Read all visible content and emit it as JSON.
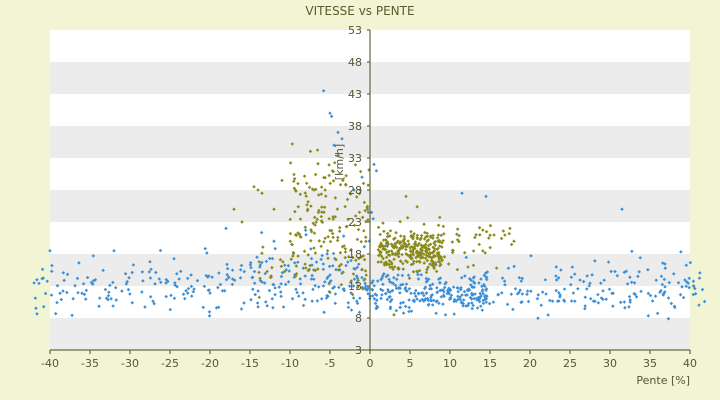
{
  "chart_data": {
    "type": "scatter",
    "title": "VITESSE vs PENTE",
    "xlabel": "Pente [%]",
    "ylabel": "[km/h]",
    "xlim": [
      -40,
      40
    ],
    "ylim": [
      3,
      53
    ],
    "x_ticks": [
      "-40",
      "-35",
      "-30",
      "-25",
      "-20",
      "-15",
      "-10",
      "-5",
      "0",
      "5",
      "10",
      "15",
      "20",
      "25",
      "30",
      "35",
      "40"
    ],
    "y_ticks": [
      "3",
      "8",
      "13",
      "18",
      "23",
      "28",
      "33",
      "38",
      "43",
      "48",
      "53"
    ],
    "grid": "horizontal alternating bands",
    "series": [
      {
        "color": "#3a8fd6",
        "marker": "diamond",
        "clusters": [
          {
            "x_range": [
              -42,
              42
            ],
            "y_center": 12.5,
            "y_spread": 1.8,
            "count": 420
          },
          {
            "x_range": [
              -15,
              0
            ],
            "y_center": 15,
            "y_spread": 3,
            "count": 60
          },
          {
            "x_range": [
              0,
              15
            ],
            "y_center": 11.5,
            "y_spread": 1.3,
            "count": 160
          },
          {
            "x_range": [
              -40,
              40
            ],
            "y_center": 15.5,
            "y_spread": 1.5,
            "count": 70
          }
        ],
        "points": [
          [
            -5.8,
            43.5
          ],
          [
            -5,
            40
          ],
          [
            -4.8,
            39.5
          ],
          [
            -4,
            37
          ],
          [
            -3.5,
            36
          ],
          [
            -4.5,
            35
          ],
          [
            0.5,
            32
          ],
          [
            0.8,
            31
          ],
          [
            -1,
            30
          ],
          [
            -2,
            28
          ],
          [
            0.2,
            24.5
          ],
          [
            0.4,
            23.5
          ],
          [
            -0.3,
            25
          ],
          [
            11.5,
            27.5
          ],
          [
            14.5,
            27
          ],
          [
            31.5,
            25
          ],
          [
            -40,
            18.5
          ],
          [
            -32,
            18.5
          ],
          [
            -18,
            22
          ],
          [
            -12,
            20
          ],
          [
            -8,
            21
          ]
        ]
      },
      {
        "color": "#8a8a1a",
        "marker": "diamond",
        "clusters": [
          {
            "x_range": [
              -10,
              0
            ],
            "y_center": 24,
            "y_spread": 4.5,
            "count": 160
          },
          {
            "x_range": [
              1,
              9
            ],
            "y_center": 18.5,
            "y_spread": 1.6,
            "count": 230
          },
          {
            "x_range": [
              1,
              18
            ],
            "y_center": 19.5,
            "y_spread": 2,
            "count": 90
          },
          {
            "x_range": [
              -14,
              0
            ],
            "y_center": 16,
            "y_spread": 2,
            "count": 35
          }
        ],
        "points": [
          [
            -14,
            28
          ],
          [
            -13.5,
            27.5
          ],
          [
            -14.5,
            28.5
          ],
          [
            -11,
            29.5
          ],
          [
            -9,
            29
          ],
          [
            -7,
            28
          ],
          [
            -17,
            25
          ],
          [
            -16,
            23
          ],
          [
            -12,
            25
          ],
          [
            4.5,
            27
          ],
          [
            3,
            8.5
          ],
          [
            18,
            20
          ],
          [
            -1.5,
            13
          ],
          [
            -5,
            12
          ]
        ]
      }
    ]
  }
}
